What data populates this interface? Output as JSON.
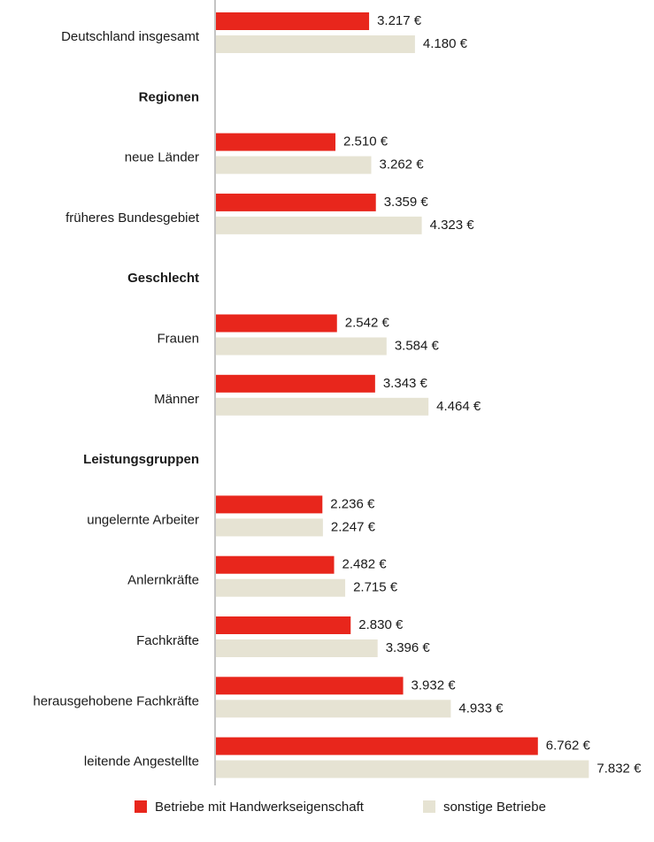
{
  "chart_data": {
    "type": "barh",
    "categories": [
      "Deutschland insgesamt",
      "Regionen",
      "neue Länder",
      "früheres Bundesgebiet",
      "Geschlecht",
      "Frauen",
      "Männer",
      "Leistungsgruppen",
      "ungelernte Arbeiter",
      "Anlernkräfte",
      "Fachkräfte",
      "herausgehobene Fachkräfte",
      "leitende Angestellte"
    ],
    "series": [
      {
        "name": "Betriebe mit Handwerkseigenschaft",
        "color": "#e8261c",
        "values": [
          3217,
          null,
          2510,
          3359,
          null,
          2542,
          3343,
          null,
          2236,
          2482,
          2830,
          3932,
          6762
        ],
        "value_labels": [
          "3.217 €",
          null,
          "2.510 €",
          "3.359 €",
          null,
          "2.542 €",
          "3.343 €",
          null,
          "2.236 €",
          "2.482 €",
          "2.830 €",
          "3.932 €",
          "6.762 €"
        ]
      },
      {
        "name": "sonstige Betriebe",
        "color": "#e6e3d3",
        "values": [
          4180,
          null,
          3262,
          4323,
          null,
          3584,
          4464,
          null,
          2247,
          2715,
          3396,
          4933,
          7832
        ],
        "value_labels": [
          "4.180 €",
          null,
          "3.262 €",
          "4.323 €",
          null,
          "3.584 €",
          "4.464 €",
          null,
          "2.247 €",
          "2.715 €",
          "3.396 €",
          "4.933 €",
          "7.832 €"
        ]
      }
    ],
    "legend": "bottom"
  }
}
